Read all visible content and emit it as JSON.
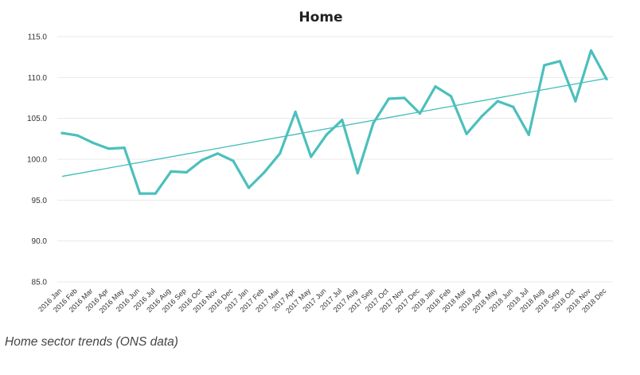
{
  "caption": "Home sector trends (ONS data)",
  "colors": {
    "series": "#4bc0bc",
    "trend": "#3dbdb8",
    "grid": "#e9e9e9",
    "tick_text": "#333333",
    "title_text": "#222222"
  },
  "chart_data": {
    "type": "line",
    "title": "Home",
    "xlabel": "",
    "ylabel": "",
    "ylim": [
      85,
      115
    ],
    "yticks": [
      "85.0",
      "90.0",
      "95.0",
      "100.0",
      "105.0",
      "110.0",
      "115.0"
    ],
    "ytick_values": [
      85,
      90,
      95,
      100,
      105,
      110,
      115
    ],
    "grid": true,
    "legend": "none",
    "categories": [
      "2016 Jan",
      "2016 Feb",
      "2016 Mar",
      "2016 Apr",
      "2016 May",
      "2016 Jun",
      "2016 Jul",
      "2016 Aug",
      "2016 Sep",
      "2016 Oct",
      "2016 Nov",
      "2016 Dec",
      "2017 Jan",
      "2017 Feb",
      "2017 Mar",
      "2017 Apr",
      "2017 May",
      "2017 Jun",
      "2017 Jul",
      "2017 Aug",
      "2017 Sep",
      "2017 Oct",
      "2017 Nov",
      "2017 Dec",
      "2018 Jan",
      "2018 Feb",
      "2018 Mar",
      "2018 Apr",
      "2018 May",
      "2018 Jun",
      "2018 Jul",
      "2018 Aug",
      "2018 Sep",
      "2018 Oct",
      "2018 Nov",
      "2018 Dec"
    ],
    "series": [
      {
        "values": [
          103.2,
          102.9,
          102.0,
          101.3,
          101.4,
          95.8,
          95.8,
          98.5,
          98.4,
          99.9,
          100.7,
          99.8,
          96.5,
          98.4,
          100.7,
          105.8,
          100.3,
          103.0,
          104.8,
          98.3,
          104.4,
          107.4,
          107.5,
          105.6,
          108.9,
          107.7,
          103.1,
          105.3,
          107.1,
          106.4,
          103.0,
          111.5,
          112.0,
          107.1,
          113.3,
          109.8
        ]
      }
    ],
    "trendline": {
      "start": 97.9,
      "end": 109.9
    }
  }
}
